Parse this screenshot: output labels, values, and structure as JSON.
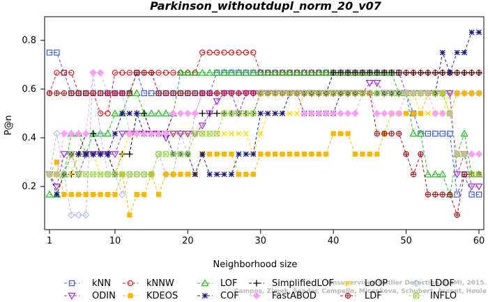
{
  "chart_data": {
    "type": "line",
    "title": "Parkinson_withoutdupl_norm_20_v07",
    "xlabel": "Neighborhood size",
    "ylabel": "P@n",
    "xlim": [
      1,
      60
    ],
    "ylim": [
      0.04,
      0.88
    ],
    "xticks": [
      1,
      10,
      20,
      30,
      40,
      50,
      60
    ],
    "yticks": [
      0.2,
      0.4,
      0.6,
      0.8
    ],
    "xtick_labels": [
      "1",
      "10",
      "20",
      "30",
      "40",
      "50",
      "60"
    ],
    "ytick_labels": [
      "0.2",
      "0.4",
      "0.6",
      "0.8"
    ],
    "grid": false,
    "legend_position": "bottom",
    "credit": "Campos, Zimek, Sander, Campello, Micenkova, Schubert, Assent, Houle\nUnsupervised Outlier Detection. DAMI, 2015.",
    "series": [
      {
        "name": "kNN",
        "color": "#3b5bd6",
        "marker": "square",
        "segments": [
          [
            1,
            0.75
          ],
          [
            3,
            0.667
          ],
          [
            4,
            0.583
          ],
          [
            12,
            0.583
          ],
          [
            13,
            0.667
          ],
          [
            14,
            0.583
          ],
          [
            23,
            0.583
          ],
          [
            24,
            0.667
          ],
          [
            49,
            0.667
          ],
          [
            50,
            0.583
          ],
          [
            51,
            0.5
          ],
          [
            52,
            0.417
          ],
          [
            56,
            0.417
          ],
          [
            57,
            0.167
          ],
          [
            58,
            0.25
          ],
          [
            59,
            0.167
          ],
          [
            60,
            0.167
          ]
        ]
      },
      {
        "name": "kNNW",
        "color": "#d11a1a",
        "marker": "circle",
        "segments": [
          [
            1,
            0.583
          ],
          [
            2,
            0.667
          ],
          [
            5,
            0.583
          ],
          [
            8,
            0.5
          ],
          [
            10,
            0.667
          ],
          [
            21,
            0.667
          ],
          [
            22,
            0.75
          ],
          [
            28,
            0.75
          ],
          [
            30,
            0.667
          ],
          [
            60,
            0.667
          ]
        ]
      },
      {
        "name": "LOF",
        "color": "#22bb22",
        "marker": "triangle",
        "segments": [
          [
            1,
            0.167
          ],
          [
            3,
            0.25
          ],
          [
            4,
            0.417
          ],
          [
            6,
            0.333
          ],
          [
            7,
            0.417
          ],
          [
            10,
            0.5
          ],
          [
            12,
            0.583
          ],
          [
            14,
            0.5
          ],
          [
            18,
            0.5
          ],
          [
            19,
            0.667
          ],
          [
            25,
            0.667
          ],
          [
            48,
            0.667
          ],
          [
            49,
            0.583
          ],
          [
            51,
            0.417
          ],
          [
            53,
            0.25
          ],
          [
            55,
            0.25
          ],
          [
            56,
            0.167
          ],
          [
            57,
            0.333
          ],
          [
            58,
            0.417
          ],
          [
            59,
            0.25
          ],
          [
            60,
            0.25
          ]
        ]
      },
      {
        "name": "SimplifiedLOF",
        "color": "#000000",
        "marker": "plus",
        "segments": [
          [
            1,
            0.25
          ],
          [
            5,
            0.333
          ],
          [
            6,
            0.417
          ],
          [
            8,
            0.333
          ],
          [
            10,
            0.25
          ],
          [
            11,
            0.333
          ],
          [
            13,
            0.5
          ],
          [
            15,
            0.417
          ],
          [
            17,
            0.417
          ],
          [
            18,
            0.5
          ],
          [
            29,
            0.5
          ],
          [
            30,
            0.583
          ],
          [
            39,
            0.583
          ],
          [
            40,
            0.667
          ],
          [
            60,
            0.667
          ]
        ]
      },
      {
        "name": "LoOP",
        "color": "#ffd700",
        "marker": "x",
        "segments": [
          [
            1,
            0.25
          ],
          [
            4,
            0.25
          ],
          [
            5,
            0.333
          ],
          [
            7,
            0.333
          ],
          [
            8,
            0.25
          ],
          [
            10,
            0.25
          ],
          [
            11,
            0.333
          ],
          [
            12,
            0.417
          ],
          [
            20,
            0.417
          ],
          [
            22,
            0.417
          ],
          [
            28,
            0.417
          ],
          [
            29,
            0.333
          ],
          [
            30,
            0.417
          ],
          [
            31,
            0.5
          ],
          [
            35,
            0.5
          ],
          [
            36,
            0.583
          ],
          [
            48,
            0.583
          ],
          [
            50,
            0.583
          ],
          [
            52,
            0.5
          ],
          [
            54,
            0.5
          ],
          [
            56,
            0.583
          ],
          [
            60,
            0.583
          ]
        ]
      },
      {
        "name": "LDOF",
        "color": "#b0b8f0",
        "marker": "diamond",
        "segments": [
          [
            1,
            0.25
          ],
          [
            2,
            0.417
          ],
          [
            3,
            0.25
          ],
          [
            4,
            0.083
          ],
          [
            6,
            0.083
          ],
          [
            7,
            0.667
          ],
          [
            8,
            0.417
          ],
          [
            9,
            0.25
          ],
          [
            11,
            0.167
          ],
          [
            12,
            0.25
          ],
          [
            15,
            0.25
          ],
          [
            16,
            0.333
          ],
          [
            17,
            0.25
          ],
          [
            19,
            0.417
          ],
          [
            20,
            0.333
          ],
          [
            21,
            0.5
          ],
          [
            22,
            0.583
          ],
          [
            26,
            0.583
          ],
          [
            27,
            0.5
          ],
          [
            28,
            0.583
          ],
          [
            60,
            0.583
          ]
        ]
      },
      {
        "name": "ODIN",
        "color": "#9a30d4",
        "marker": "invtriangle",
        "segments": [
          [
            1,
            0.25
          ],
          [
            2,
            0.2
          ],
          [
            3,
            0.333
          ],
          [
            5,
            0.25
          ],
          [
            6,
            0.333
          ],
          [
            8,
            0.333
          ],
          [
            9,
            0.333
          ],
          [
            10,
            0.333
          ],
          [
            11,
            0.417
          ],
          [
            12,
            0.417
          ],
          [
            13,
            0.417
          ],
          [
            14,
            0.417
          ],
          [
            15,
            0.417
          ],
          [
            16,
            0.417
          ],
          [
            17,
            0.4
          ],
          [
            18,
            0.417
          ],
          [
            19,
            0.417
          ],
          [
            20,
            0.417
          ],
          [
            21,
            0.417
          ],
          [
            22,
            0.45
          ],
          [
            23,
            0.5
          ],
          [
            24,
            0.55
          ],
          [
            25,
            0.583
          ],
          [
            26,
            0.583
          ],
          [
            27,
            0.5
          ],
          [
            28,
            0.583
          ],
          [
            40,
            0.583
          ],
          [
            42,
            0.583
          ],
          [
            44,
            0.583
          ],
          [
            45,
            0.625
          ],
          [
            47,
            0.583
          ],
          [
            49,
            0.583
          ],
          [
            56,
            0.583
          ],
          [
            57,
            0.25
          ],
          [
            58,
            0.333
          ],
          [
            59,
            0.2
          ],
          [
            60,
            0.2
          ]
        ]
      },
      {
        "name": "KDEOS",
        "color": "#f5b700",
        "marker": "filledsquare",
        "segments": [
          [
            1,
            0.25
          ],
          [
            2,
            0.3
          ],
          [
            3,
            0.167
          ],
          [
            4,
            0.167
          ],
          [
            6,
            0.167
          ],
          [
            10,
            0.167
          ],
          [
            11,
            0.25
          ],
          [
            12,
            0.083
          ],
          [
            13,
            0.167
          ],
          [
            14,
            0.167
          ],
          [
            15,
            0.25
          ],
          [
            16,
            0.167
          ],
          [
            17,
            0.25
          ],
          [
            21,
            0.25
          ],
          [
            22,
            0.333
          ],
          [
            26,
            0.333
          ],
          [
            27,
            0.25
          ],
          [
            29,
            0.25
          ],
          [
            30,
            0.333
          ],
          [
            39,
            0.333
          ],
          [
            40,
            0.417
          ],
          [
            42,
            0.417
          ],
          [
            43,
            0.333
          ],
          [
            46,
            0.333
          ],
          [
            47,
            0.417
          ],
          [
            48,
            0.5
          ],
          [
            52,
            0.5
          ],
          [
            53,
            0.583
          ],
          [
            55,
            0.583
          ],
          [
            56,
            0.5
          ],
          [
            57,
            0.583
          ],
          [
            60,
            0.583
          ]
        ]
      },
      {
        "name": "COF",
        "color": "#1a1a7a",
        "marker": "star",
        "segments": [
          [
            1,
            0.25
          ],
          [
            2,
            0.167
          ],
          [
            3,
            0.25
          ],
          [
            4,
            0.333
          ],
          [
            6,
            0.333
          ],
          [
            8,
            0.333
          ],
          [
            9,
            0.333
          ],
          [
            10,
            0.417
          ],
          [
            11,
            0.5
          ],
          [
            12,
            0.5
          ],
          [
            13,
            0.5
          ],
          [
            14,
            0.417
          ],
          [
            15,
            0.417
          ],
          [
            17,
            0.417
          ],
          [
            18,
            0.333
          ],
          [
            20,
            0.333
          ],
          [
            21,
            0.25
          ],
          [
            22,
            0.333
          ],
          [
            23,
            0.25
          ],
          [
            26,
            0.25
          ],
          [
            27,
            0.333
          ],
          [
            29,
            0.333
          ],
          [
            30,
            0.5
          ],
          [
            33,
            0.5
          ],
          [
            34,
            0.583
          ],
          [
            36,
            0.5
          ],
          [
            40,
            0.5
          ],
          [
            41,
            0.583
          ],
          [
            48,
            0.583
          ],
          [
            52,
            0.583
          ],
          [
            54,
            0.583
          ],
          [
            55,
            0.75
          ],
          [
            56,
            0.667
          ],
          [
            57,
            0.75
          ],
          [
            58,
            0.75
          ],
          [
            59,
            0.833
          ],
          [
            60,
            0.833
          ]
        ]
      },
      {
        "name": "FastABOD",
        "color": "#ff9ef5",
        "marker": "filleddiamond",
        "segments": [
          [
            1,
            0.25
          ],
          [
            2,
            0.25
          ],
          [
            3,
            0.417
          ],
          [
            5,
            0.417
          ],
          [
            7,
            0.667
          ],
          [
            9,
            0.583
          ],
          [
            11,
            0.583
          ],
          [
            12,
            0.417
          ],
          [
            14,
            0.417
          ],
          [
            16,
            0.417
          ],
          [
            18,
            0.5
          ],
          [
            20,
            0.5
          ],
          [
            22,
            0.583
          ],
          [
            24,
            0.583
          ],
          [
            28,
            0.583
          ],
          [
            30,
            0.583
          ],
          [
            35,
            0.583
          ],
          [
            36,
            0.5
          ],
          [
            42,
            0.5
          ],
          [
            44,
            0.583
          ],
          [
            46,
            0.5
          ],
          [
            49,
            0.5
          ],
          [
            50,
            0.583
          ],
          [
            53,
            0.583
          ],
          [
            54,
            0.5
          ],
          [
            56,
            0.5
          ],
          [
            57,
            0.333
          ],
          [
            60,
            0.333
          ]
        ]
      },
      {
        "name": "LDF",
        "color": "#a01010",
        "marker": "crosscircle",
        "segments": [
          [
            1,
            0.583
          ],
          [
            2,
            0.583
          ],
          [
            5,
            0.583
          ],
          [
            7,
            0.583
          ],
          [
            8,
            0.583
          ],
          [
            9,
            0.583
          ],
          [
            10,
            0.583
          ],
          [
            12,
            0.583
          ],
          [
            13,
            0.667
          ],
          [
            16,
            0.583
          ],
          [
            18,
            0.583
          ],
          [
            20,
            0.583
          ],
          [
            21,
            0.583
          ],
          [
            22,
            0.583
          ],
          [
            25,
            0.583
          ],
          [
            30,
            0.583
          ],
          [
            32,
            0.583
          ],
          [
            35,
            0.583
          ],
          [
            40,
            0.583
          ],
          [
            45,
            0.583
          ],
          [
            46,
            0.417
          ],
          [
            49,
            0.417
          ],
          [
            50,
            0.333
          ],
          [
            51,
            0.25
          ],
          [
            52,
            0.333
          ],
          [
            53,
            0.167
          ],
          [
            56,
            0.167
          ],
          [
            57,
            0.083
          ],
          [
            58,
            0.25
          ],
          [
            59,
            0.25
          ],
          [
            60,
            0.25
          ]
        ]
      },
      {
        "name": "INFLO",
        "color": "#9cd44a",
        "marker": "hourglass",
        "segments": [
          [
            1,
            0.25
          ],
          [
            3,
            0.25
          ],
          [
            4,
            0.333
          ],
          [
            5,
            0.25
          ],
          [
            9,
            0.25
          ],
          [
            10,
            0.25
          ],
          [
            11,
            0.25
          ],
          [
            15,
            0.25
          ],
          [
            16,
            0.333
          ],
          [
            20,
            0.333
          ],
          [
            21,
            0.417
          ],
          [
            25,
            0.5
          ],
          [
            29,
            0.5
          ],
          [
            30,
            0.583
          ],
          [
            40,
            0.583
          ],
          [
            45,
            0.583
          ],
          [
            49,
            0.583
          ],
          [
            50,
            0.583
          ],
          [
            53,
            0.583
          ],
          [
            55,
            0.583
          ],
          [
            56,
            0.5
          ],
          [
            57,
            0.333
          ],
          [
            59,
            0.25
          ],
          [
            60,
            0.25
          ]
        ]
      }
    ]
  }
}
